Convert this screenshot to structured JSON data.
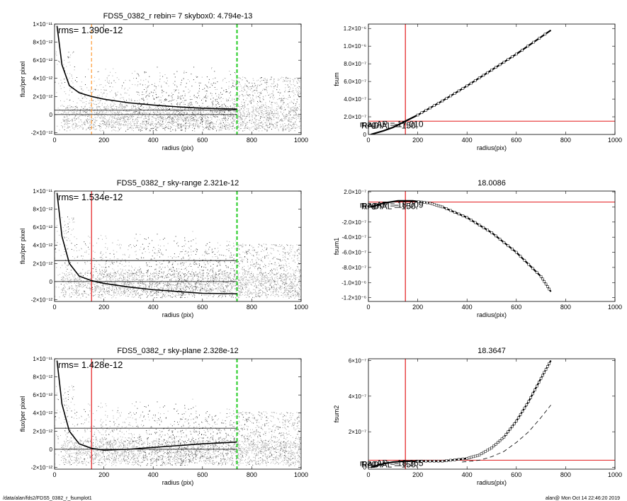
{
  "footer": {
    "path": "/data/alan/fds2/FDS5_0382_r_fsumplot1",
    "stamp": "alan@  Mon Oct 14 22:46:20 2019"
  },
  "colors": {
    "scatter_gray": "#a8a8a8",
    "scatter_dark": "#3a3a3a",
    "profile": "#000000",
    "red_marker": "#e31a1c",
    "green_marker": "#22cc22",
    "orange_marker": "#ff9933"
  },
  "chart_data": [
    {
      "type": "scatter",
      "title": "FDS5_0382_r rebin= 7    skybox0:  4.794e-13",
      "xlabel": "radius (pix)",
      "ylabel": "flux/per pixel",
      "annotation": "rms= 1.390e-12",
      "xlim": [
        0,
        1000
      ],
      "ylim": [
        -2.2e-12,
        1e-11
      ],
      "xticks": [
        0,
        200,
        400,
        600,
        800,
        1000
      ],
      "ytick_labels": [
        "-2×10⁻¹²",
        "0",
        "2×10⁻¹²",
        "4×10⁻¹²",
        "6×10⁻¹²",
        "8×10⁻¹²",
        "1×10⁻¹¹"
      ],
      "yticks": [
        -2e-12,
        0,
        2e-12,
        4e-12,
        6e-12,
        8e-12,
        1e-11
      ],
      "series": [
        {
          "role": "profile",
          "x": [
            10,
            30,
            60,
            100,
            150,
            200,
            300,
            400,
            500,
            600,
            740
          ],
          "y": [
            9.8e-12,
            5.5e-12,
            3.2e-12,
            2.4e-12,
            2e-12,
            1.7e-12,
            1.3e-12,
            1.05e-12,
            8.5e-13,
            7e-13,
            6e-13
          ]
        }
      ],
      "hlines": [
        4.794e-13,
        0
      ],
      "vlines": [
        {
          "x": 150,
          "color": "orange",
          "style": "dashed"
        },
        {
          "x": 740,
          "color": "green",
          "style": "dashed"
        }
      ]
    },
    {
      "type": "line",
      "title": "",
      "xlabel": "radius(pix)",
      "ylabel": "fsum",
      "xlim": [
        0,
        1000
      ],
      "ylim": [
        0,
        1.25e-06
      ],
      "xticks": [
        0,
        200,
        400,
        600,
        800,
        1000
      ],
      "ytick_labels": [
        "0",
        "2.0×10⁻⁷",
        "4.0×10⁻⁷",
        "6.0×10⁻⁷",
        "8.0×10⁻⁷",
        "1.0×10⁻⁶",
        "1.2×10⁻⁶"
      ],
      "yticks": [
        0,
        2e-07,
        4e-07,
        6e-07,
        8e-07,
        1e-06,
        1.2e-06
      ],
      "series": [
        {
          "role": "fsum",
          "x": [
            10,
            60,
            100,
            150,
            200,
            300,
            400,
            500,
            600,
            740
          ],
          "y": [
            0,
            4e-08,
            8e-08,
            1.5e-07,
            2.2e-07,
            3.8e-07,
            5.5e-07,
            7.3e-07,
            9.1e-07,
            1.18e-06
          ]
        }
      ],
      "hline": 1.5e-07,
      "vline": 150,
      "overlap_labels": [
        "magAP = 17.010",
        "RADIAL = 150."
      ]
    },
    {
      "type": "scatter",
      "title": "FDS5_0382_r sky-range  2.321e-12",
      "xlabel": "radius (pix)",
      "ylabel": "flux/per pixel",
      "annotation": "rms= 1.534e-12",
      "xlim": [
        0,
        1000
      ],
      "ylim": [
        -2.2e-12,
        1e-11
      ],
      "xticks": [
        0,
        200,
        400,
        600,
        800,
        1000
      ],
      "ytick_labels": [
        "-2×10⁻¹²",
        "0",
        "2×10⁻¹²",
        "4×10⁻¹²",
        "6×10⁻¹²",
        "8×10⁻¹²",
        "1×10⁻¹¹"
      ],
      "yticks": [
        -2e-12,
        0,
        2e-12,
        4e-12,
        6e-12,
        8e-12,
        1e-11
      ],
      "series": [
        {
          "role": "profile",
          "x": [
            10,
            30,
            60,
            100,
            150,
            200,
            300,
            400,
            500,
            600,
            740
          ],
          "y": [
            9.8e-12,
            5e-12,
            2e-12,
            6e-13,
            1e-13,
            -2e-13,
            -6e-13,
            -9e-13,
            -1.1e-12,
            -1.3e-12,
            -1.35e-12
          ]
        }
      ],
      "hlines": [
        2.321e-12,
        0
      ],
      "vlines": [
        {
          "x": 150,
          "color": "red",
          "style": "solid"
        },
        {
          "x": 740,
          "color": "green",
          "style": "dashed"
        }
      ]
    },
    {
      "type": "line",
      "title": "18.0086",
      "xlabel": "radius(pix)",
      "ylabel": "fsum1",
      "xlim": [
        0,
        1000
      ],
      "ylim": [
        -1.25e-06,
        2.1e-07
      ],
      "xticks": [
        0,
        200,
        400,
        600,
        800,
        1000
      ],
      "ytick_labels": [
        "-1.2×10⁻⁶",
        "-1.0×10⁻⁶",
        "-8.0×10⁻⁷",
        "-6.0×10⁻⁷",
        "-4.0×10⁻⁷",
        "-2.0×10⁻⁷",
        "0",
        "2.0×10⁻⁷"
      ],
      "yticks": [
        -1.2e-06,
        -1e-06,
        -8e-07,
        -6e-07,
        -4e-07,
        -2e-07,
        0,
        2e-07
      ],
      "series": [
        {
          "role": "fsum1",
          "x": [
            10,
            60,
            120,
            180,
            250,
            300,
            400,
            500,
            600,
            700,
            740
          ],
          "y": [
            0,
            5e-08,
            8e-08,
            8e-08,
            5e-08,
            0,
            -1.4e-07,
            -3.4e-07,
            -6e-07,
            -9.2e-07,
            -1.12e-06
          ]
        }
      ],
      "hline": 6.5e-08,
      "vline": 150,
      "overlap_labels": [
        "magAP = 18.009",
        "RADIAL = 150."
      ]
    },
    {
      "type": "scatter",
      "title": "FDS5_0382_r sky-plane  2.328e-12",
      "xlabel": "radius (pix)",
      "ylabel": "flux/per pixel",
      "annotation": "rms= 1.428e-12",
      "xlim": [
        0,
        1000
      ],
      "ylim": [
        -2.2e-12,
        1e-11
      ],
      "xticks": [
        0,
        200,
        400,
        600,
        800,
        1000
      ],
      "ytick_labels": [
        "-2×10⁻¹²",
        "0",
        "2×10⁻¹²",
        "4×10⁻¹²",
        "6×10⁻¹²",
        "8×10⁻¹²",
        "1×10⁻¹¹"
      ],
      "yticks": [
        -2e-12,
        0,
        2e-12,
        4e-12,
        6e-12,
        8e-12,
        1e-11
      ],
      "series": [
        {
          "role": "profile",
          "x": [
            10,
            30,
            60,
            100,
            150,
            200,
            300,
            400,
            500,
            600,
            740
          ],
          "y": [
            9.8e-12,
            5e-12,
            2e-12,
            6e-13,
            1e-13,
            -1e-13,
            0,
            2e-13,
            4e-13,
            6e-13,
            8e-13
          ]
        }
      ],
      "hlines": [
        2.328e-12,
        0
      ],
      "vlines": [
        {
          "x": 150,
          "color": "red",
          "style": "solid"
        },
        {
          "x": 740,
          "color": "green",
          "style": "dashed"
        }
      ]
    },
    {
      "type": "line",
      "title": "18.3647",
      "xlabel": "radius(pix)",
      "ylabel": "fsum2",
      "xlim": [
        0,
        1000
      ],
      "ylim": [
        -1e-08,
        6.1e-07
      ],
      "xticks": [
        0,
        200,
        400,
        600,
        800,
        1000
      ],
      "ytick_labels": [
        "0",
        "2×10⁻⁷",
        "4×10⁻⁷",
        "6×10⁻⁷"
      ],
      "yticks": [
        0,
        2e-07,
        4e-07,
        6e-07
      ],
      "series": [
        {
          "role": "fsum2",
          "x": [
            10,
            60,
            100,
            150,
            200,
            300,
            400,
            450,
            500,
            550,
            600,
            650,
            700,
            740
          ],
          "y": [
            0,
            2e-08,
            3e-08,
            3.5e-08,
            3.5e-08,
            3.5e-08,
            5e-08,
            7e-08,
            1.1e-07,
            1.7e-07,
            2.6e-07,
            3.7e-07,
            5e-07,
            6e-07
          ]
        },
        {
          "role": "dashed",
          "x": [
            380,
            450,
            500,
            550,
            600,
            650,
            700,
            740
          ],
          "y": [
            3e-08,
            4e-08,
            6e-08,
            9e-08,
            1.4e-07,
            2e-07,
            2.8e-07,
            3.5e-07
          ]
        }
      ],
      "hline": 4e-08,
      "vline": 150,
      "overlap_labels": [
        "magAP = 18.365",
        "RADIAL = 150."
      ]
    }
  ]
}
